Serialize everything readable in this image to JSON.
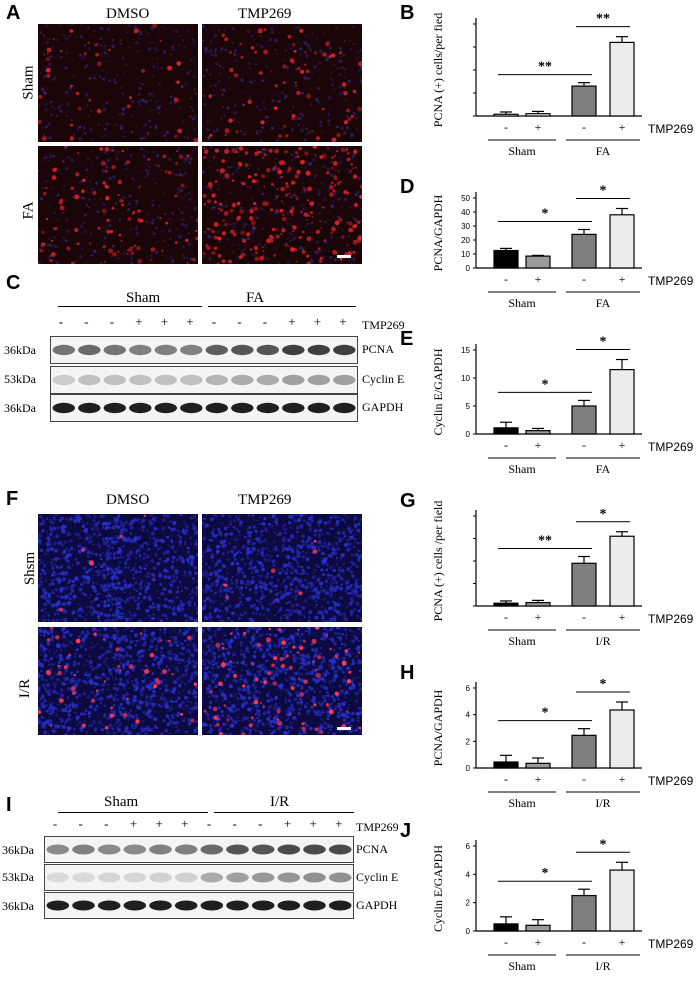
{
  "panel_letters": {
    "A": "A",
    "B": "B",
    "C": "C",
    "D": "D",
    "E": "E",
    "F": "F",
    "G": "G",
    "H": "H",
    "I": "I",
    "J": "J"
  },
  "micro_top": {
    "col1": "DMSO",
    "col2": "TMP269",
    "row1": "Sham",
    "row2": "FA"
  },
  "micro_bottom": {
    "col1": "DMSO",
    "col2": "TMP269",
    "row1": "Shsm",
    "row2": "I/R"
  },
  "blot_top": {
    "group1": "Sham",
    "group2": "FA",
    "treatment": "TMP269",
    "signs": [
      "-",
      "-",
      "-",
      "+",
      "+",
      "+",
      "-",
      "-",
      "-",
      "+",
      "+",
      "+"
    ],
    "rows": [
      {
        "kda": "36kDa",
        "protein": "PCNA"
      },
      {
        "kda": "53kDa",
        "protein": "Cyclin E"
      },
      {
        "kda": "36kDa",
        "protein": "GAPDH"
      }
    ]
  },
  "blot_bottom": {
    "group1": "Sham",
    "group2": "I/R",
    "treatment": "TMP269",
    "signs": [
      "-",
      "-",
      "-",
      "+",
      "+",
      "+",
      "-",
      "-",
      "-",
      "+",
      "+",
      "+"
    ],
    "rows": [
      {
        "kda": "36kDa",
        "protein": "PCNA"
      },
      {
        "kda": "53kDa",
        "protein": "Cyclin E"
      },
      {
        "kda": "36kDa",
        "protein": "GAPDH"
      }
    ]
  },
  "chart_data": [
    {
      "panel": "B",
      "type": "bar",
      "ylabel": "PCNA (+) cells/per fied",
      "ylim": [
        0,
        80
      ],
      "yticks": [],
      "values": [
        1.5,
        2,
        26,
        64
      ],
      "errors": [
        2,
        2,
        3,
        5
      ],
      "fills": [
        "#ffffff",
        "#ffffff",
        "#7f7f7f",
        "#ececec"
      ],
      "signs": [
        "-",
        "+",
        "-",
        "+"
      ],
      "treatment": "TMP269",
      "groups": [
        "Sham",
        "FA"
      ],
      "sig": [
        {
          "from": 0,
          "to": 2,
          "label": "**"
        },
        {
          "from": 2,
          "to": 3,
          "label": "**"
        }
      ]
    },
    {
      "panel": "D",
      "type": "bar",
      "ylabel": "PCNA/GAPDH",
      "ylim": [
        0,
        50
      ],
      "yticks": [
        "0",
        "10",
        "20",
        "30",
        "40",
        "50"
      ],
      "values": [
        12.5,
        8.5,
        24,
        38
      ],
      "errors": [
        1.5,
        0.5,
        3.5,
        4.5
      ],
      "fills": [
        "#000000",
        "#9b9b9b",
        "#7f7f7f",
        "#ececec"
      ],
      "signs": [
        "-",
        "+",
        "-",
        "+"
      ],
      "treatment": "TMP269",
      "groups": [
        "Sham",
        "FA"
      ],
      "sig": [
        {
          "from": 0,
          "to": 2,
          "label": "*"
        },
        {
          "from": 2,
          "to": 3,
          "label": "*"
        }
      ]
    },
    {
      "panel": "E",
      "type": "bar",
      "ylabel": "Cyclin E/GAPDH",
      "ylim": [
        0,
        15
      ],
      "yticks": [
        "0",
        "5",
        "10",
        "15"
      ],
      "values": [
        1.1,
        0.6,
        5,
        11.5
      ],
      "errors": [
        1,
        0.4,
        1,
        1.8
      ],
      "fills": [
        "#000000",
        "#9b9b9b",
        "#7f7f7f",
        "#ececec"
      ],
      "signs": [
        "-",
        "+",
        "-",
        "+"
      ],
      "treatment": "TMP269",
      "groups": [
        "Sham",
        "FA"
      ],
      "sig": [
        {
          "from": 0,
          "to": 2,
          "label": "*"
        },
        {
          "from": 2,
          "to": 3,
          "label": "*"
        }
      ]
    },
    {
      "panel": "G",
      "type": "bar",
      "ylabel": "PCNA (+) cells /per field",
      "ylim": [
        0,
        80
      ],
      "yticks": [],
      "values": [
        2.5,
        3,
        38,
        62
      ],
      "errors": [
        2,
        2,
        6,
        4
      ],
      "fills": [
        "#000000",
        "#9b9b9b",
        "#7f7f7f",
        "#ececec"
      ],
      "signs": [
        "-",
        "+",
        "-",
        "+"
      ],
      "treatment": "TMP269",
      "groups": [
        "Sham",
        "I/R"
      ],
      "sig": [
        {
          "from": 0,
          "to": 2,
          "label": "**"
        },
        {
          "from": 2,
          "to": 3,
          "label": "*"
        }
      ]
    },
    {
      "panel": "H",
      "type": "bar",
      "ylabel": "PCNA/GAPDH",
      "ylim": [
        0,
        6
      ],
      "yticks": [
        "0",
        "2",
        "4",
        "6"
      ],
      "values": [
        0.45,
        0.35,
        2.45,
        4.35
      ],
      "errors": [
        0.5,
        0.4,
        0.5,
        0.6
      ],
      "fills": [
        "#000000",
        "#9b9b9b",
        "#7f7f7f",
        "#ececec"
      ],
      "signs": [
        "-",
        "+",
        "-",
        "+"
      ],
      "treatment": "TMP269",
      "groups": [
        "Sham",
        "I/R"
      ],
      "sig": [
        {
          "from": 0,
          "to": 2,
          "label": "*"
        },
        {
          "from": 2,
          "to": 3,
          "label": "*"
        }
      ]
    },
    {
      "panel": "J",
      "type": "bar",
      "ylabel": "Cyclin E/GAPDH",
      "ylim": [
        0,
        6
      ],
      "yticks": [
        "0",
        "2",
        "4",
        "6"
      ],
      "values": [
        0.5,
        0.4,
        2.5,
        4.3
      ],
      "errors": [
        0.5,
        0.4,
        0.45,
        0.55
      ],
      "fills": [
        "#000000",
        "#9b9b9b",
        "#7f7f7f",
        "#ececec"
      ],
      "signs": [
        "-",
        "+",
        "-",
        "+"
      ],
      "treatment": "TMP269",
      "groups": [
        "Sham",
        "I/R"
      ],
      "sig": [
        {
          "from": 0,
          "to": 2,
          "label": "*"
        },
        {
          "from": 2,
          "to": 3,
          "label": "*"
        }
      ]
    }
  ]
}
